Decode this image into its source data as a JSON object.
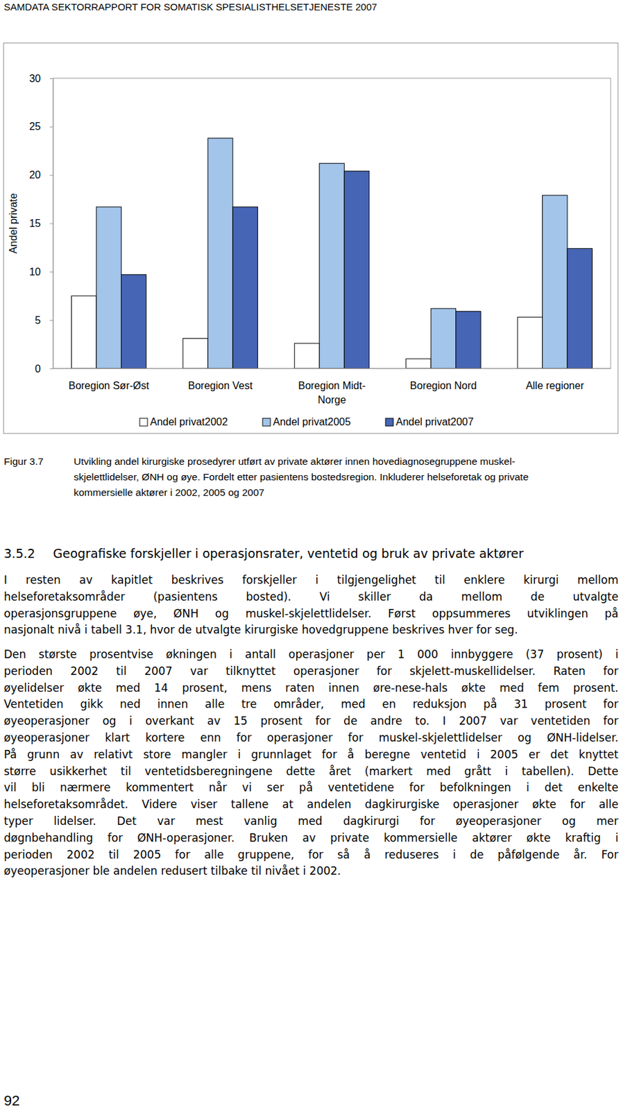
{
  "header": "SAMDATA SEKTORRAPPORT FOR SOMATISK SPESIALISTHELSETJENESTE 2007",
  "chart_data": {
    "type": "bar",
    "ylabel": "Andel private",
    "categories": [
      "Boregion Sør-Øst",
      "Boregion Vest",
      "Boregion Midt-Norge",
      "Boregion Nord",
      "Alle regioner"
    ],
    "series": [
      {
        "name": "Andel privat2002",
        "color": "#ffffff",
        "values": [
          7.5,
          3.1,
          2.6,
          1.0,
          5.3
        ]
      },
      {
        "name": "Andel privat2005",
        "color": "#a3c5ea",
        "values": [
          16.7,
          23.8,
          21.2,
          6.2,
          17.9
        ]
      },
      {
        "name": "Andel privat2007",
        "color": "#4665b4",
        "values": [
          9.7,
          16.7,
          20.4,
          5.9,
          12.4
        ]
      }
    ],
    "ylim": [
      0,
      30
    ],
    "yticks": [
      0,
      5,
      10,
      15,
      20,
      25,
      30
    ],
    "grid": false,
    "legend": "bottom"
  },
  "caption": {
    "label": "Figur 3.7",
    "lines": [
      "Utvikling andel kirurgiske prosedyrer utført av private aktører innen hovediagnosegruppene muskel-",
      "skjelettlidelser, ØNH og øye. Fordelt etter pasientens bostedsregion. Inkluderer helseforetak og private",
      "kommersielle aktører i 2002, 2005 og 2007"
    ]
  },
  "section": {
    "number": "3.5.2",
    "title": "Geografiske forskjeller i operasjonsrater, ventetid og bruk av private aktører"
  },
  "paragraphs": [
    [
      "I resten av kapitlet beskrives forskjeller i tilgjengelighet til enklere kirurgi mellom",
      "helseforetaksområder (pasientens bosted). Vi skiller da mellom de utvalgte",
      "operasjonsgruppene øye, ØNH og muskel-skjelettlidelser. Først oppsummeres utviklingen på",
      "nasjonalt nivå i tabell 3.1, hvor de utvalgte kirurgiske hovedgruppene beskrives hver for seg."
    ],
    [
      "Den største prosentvise økningen i antall operasjoner per 1 000 innbyggere (37 prosent) i",
      "perioden 2002 til 2007 var tilknyttet operasjoner for skjelett-muskellidelser. Raten for",
      "øyelidelser økte med 14 prosent, mens raten innen øre-nese-hals økte med fem prosent.",
      "Ventetiden gikk ned innen alle tre områder, med en reduksjon på 31 prosent for",
      "øyeoperasjoner og i overkant av 15 prosent for de andre to. I 2007 var ventetiden for",
      "øyeoperasjoner klart kortere enn for operasjoner for muskel-skjelettlidelser og ØNH-lidelser.",
      "På grunn av relativt store mangler i grunnlaget for å beregne ventetid i 2005 er det knyttet",
      "større usikkerhet til ventetidsberegningene dette året (markert med grått i tabellen). Dette",
      "vil bli nærmere kommentert når vi ser på ventetidene for befolkningen i det enkelte",
      "helseforetaksområdet. Videre viser tallene at andelen dagkirurgiske operasjoner økte for alle",
      "typer lidelser. Det var mest vanlig med dagkirurgi for øyeoperasjoner og mer",
      "døgnbehandling for ØNH-operasjoner. Bruken av private kommersielle aktører økte kraftig i",
      "perioden 2002 til 2005 for alle gruppene, for så å reduseres i de påfølgende år. For",
      "øyeoperasjoner ble andelen redusert tilbake til nivået i 2002."
    ]
  ],
  "page_number": "92"
}
